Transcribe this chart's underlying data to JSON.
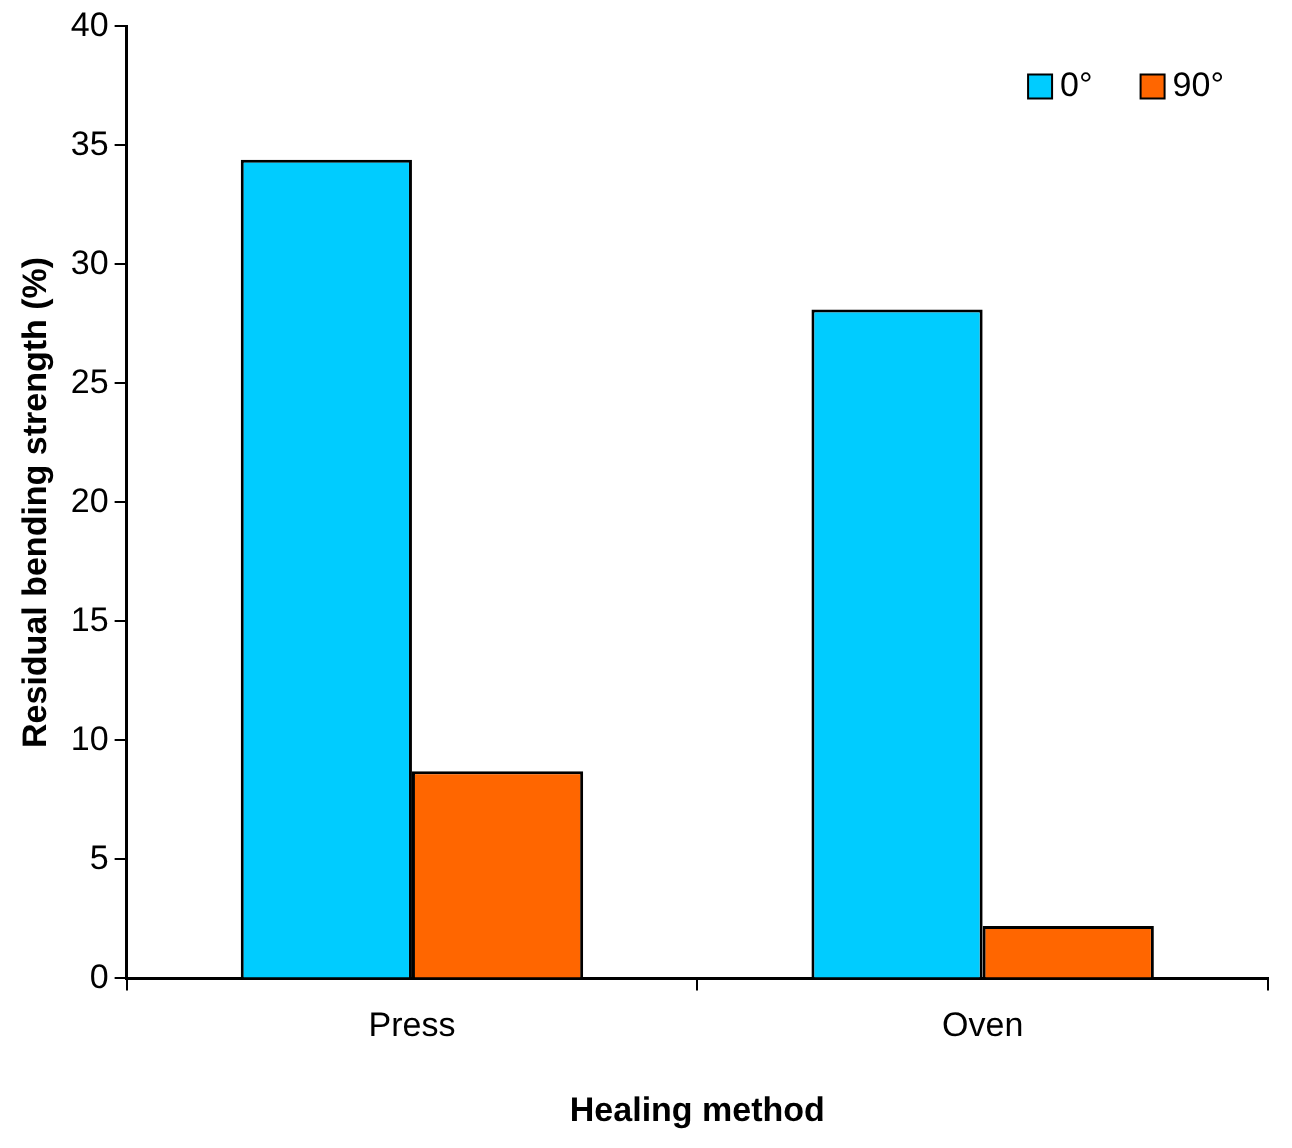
{
  "chart_data": {
    "type": "bar",
    "xlabel": "Healing method",
    "ylabel": "Residual bending strength (%)",
    "categories": [
      "Press",
      "Oven"
    ],
    "series": [
      {
        "name": "0°",
        "color": "#00ccff",
        "values": [
          34.4,
          28.1
        ]
      },
      {
        "name": "90°",
        "color": "#ff6600",
        "values": [
          8.7,
          2.2
        ]
      }
    ],
    "ylim": [
      0,
      40
    ],
    "yticks": [
      0,
      5,
      10,
      15,
      20,
      25,
      30,
      35,
      40
    ],
    "grid": false,
    "legend": "top right"
  }
}
